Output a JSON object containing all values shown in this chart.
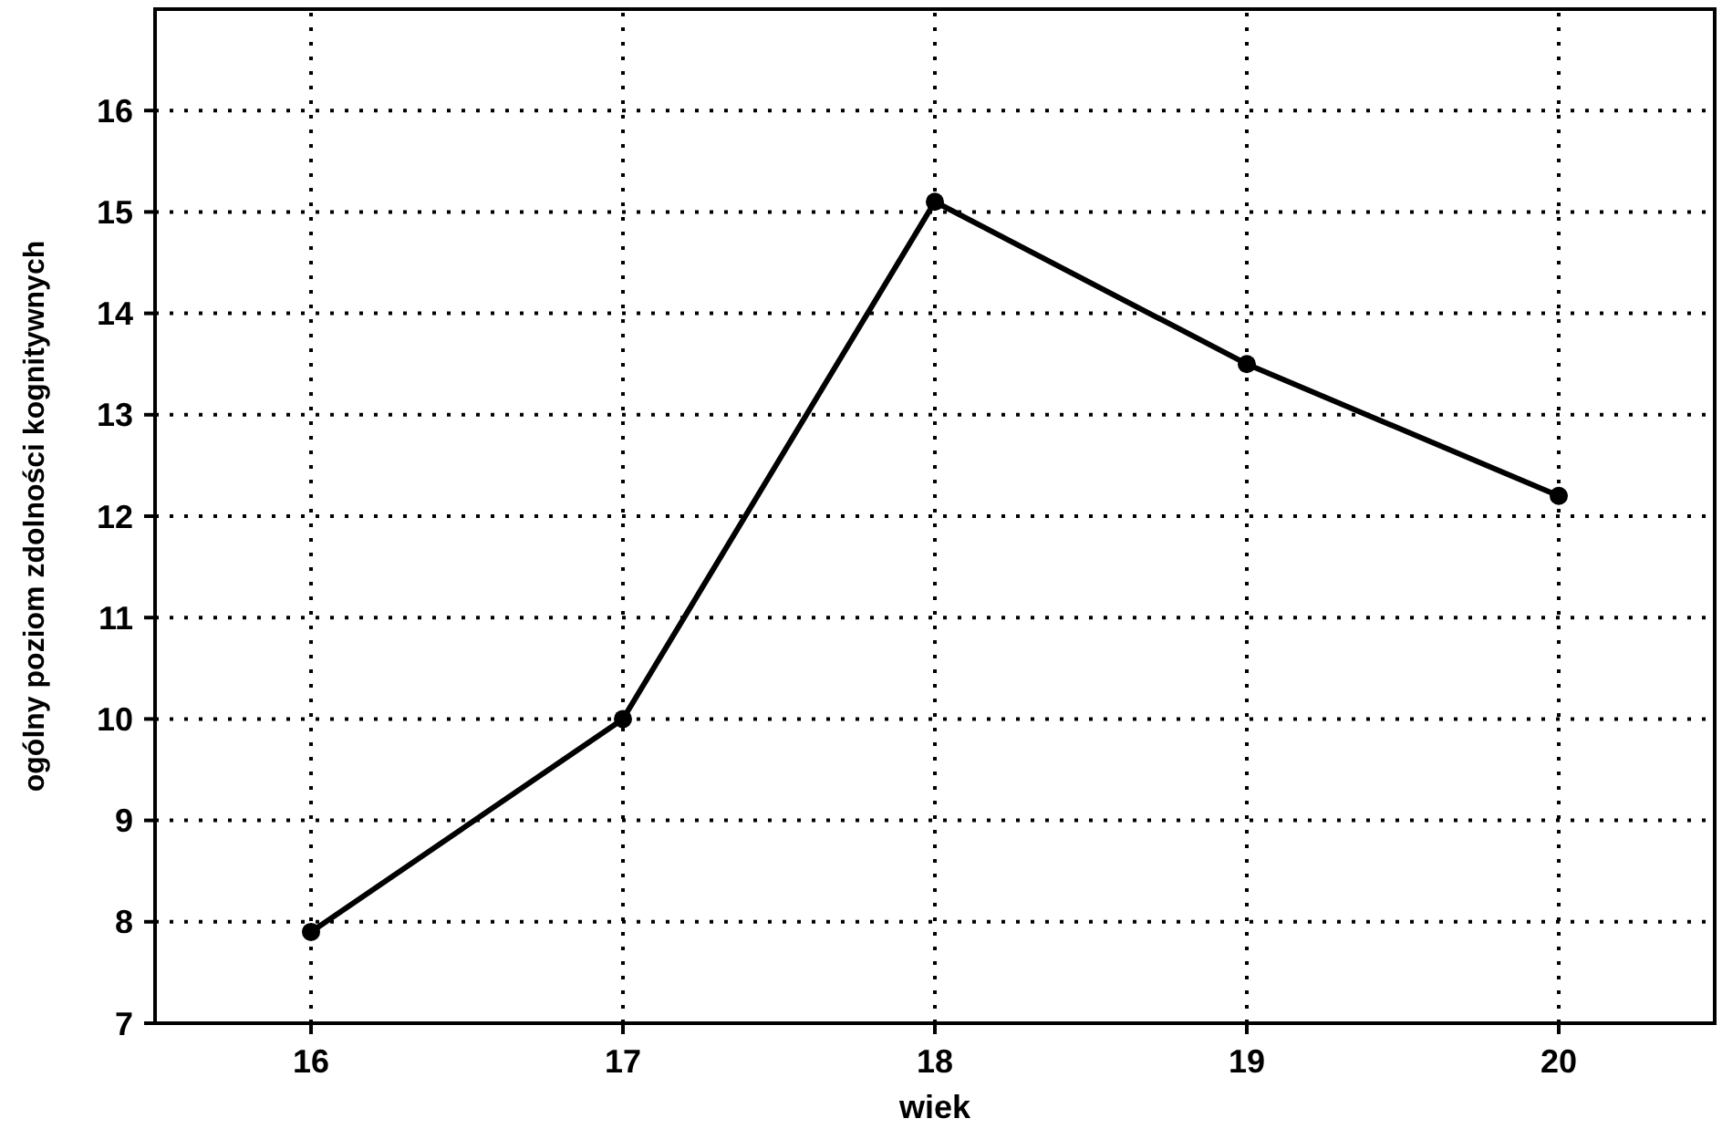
{
  "chart_data": {
    "type": "line",
    "xlabel": "wiek",
    "ylabel": "ogólny poziom zdolności kognitywnych",
    "x": [
      16,
      17,
      18,
      19,
      20
    ],
    "series": [
      {
        "color": "#000000",
        "values": [
          7.9,
          10.0,
          15.1,
          13.5,
          12.2
        ]
      }
    ],
    "xlim": [
      15.5,
      20.5
    ],
    "xticks": [
      16,
      17,
      18,
      19,
      20
    ],
    "ylim": [
      7,
      17
    ],
    "yticks": [
      7,
      8,
      9,
      10,
      11,
      12,
      13,
      14,
      15,
      16
    ],
    "grid": true,
    "marker": "circle",
    "line_style": "solid"
  }
}
